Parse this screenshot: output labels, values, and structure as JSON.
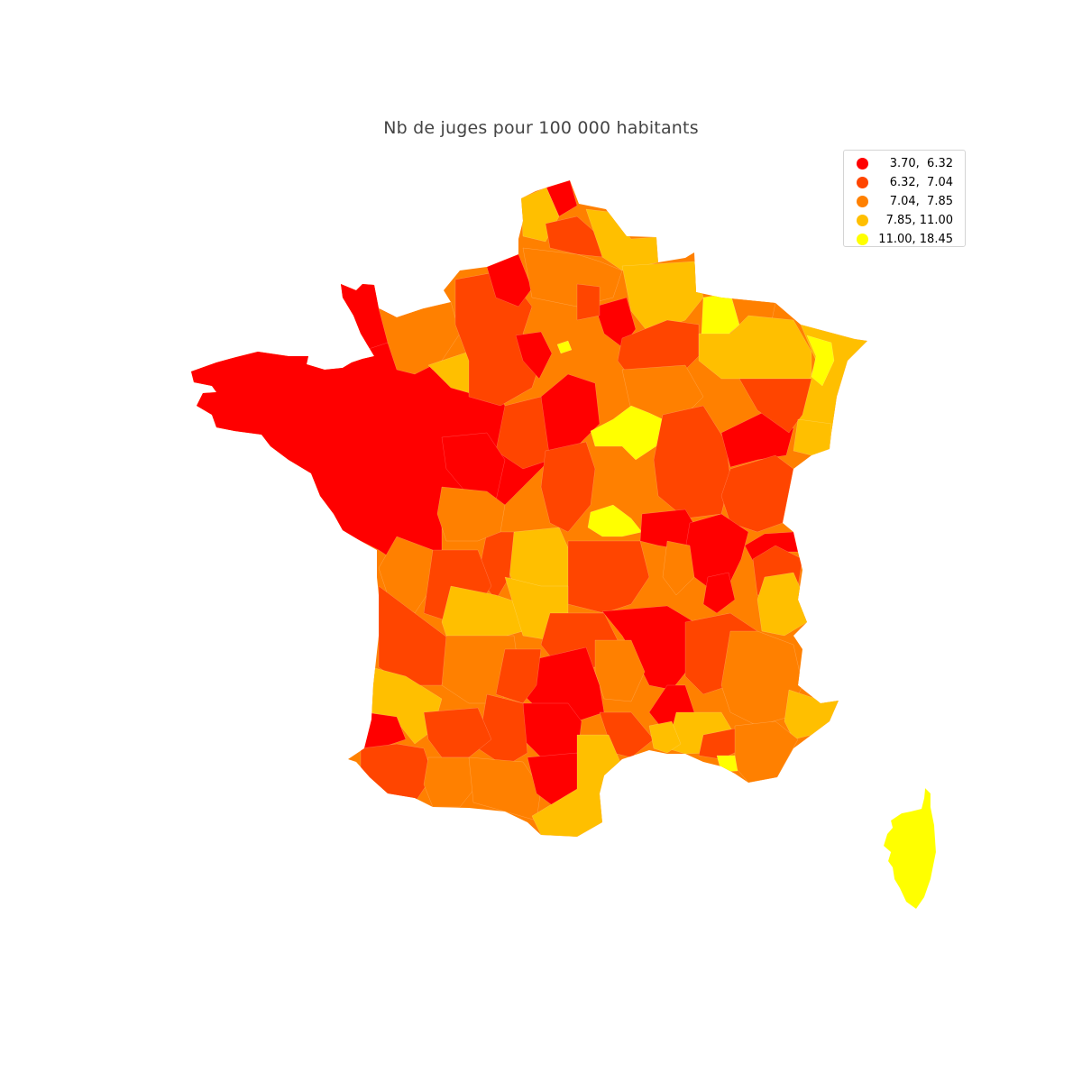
{
  "title": "Nb de juges pour 100 000 habitants",
  "legend": {
    "placement": "top-right",
    "items": [
      {
        "label": "3.70,  6.32",
        "color": "#ff0000"
      },
      {
        "label": "6.32,  7.04",
        "color": "#ff4500"
      },
      {
        "label": "7.04,  7.85",
        "color": "#ff8000"
      },
      {
        "label": "7.85, 11.00",
        "color": "#ffbf00"
      },
      {
        "label": "11.00, 18.45",
        "color": "#ffff00"
      }
    ]
  },
  "map": {
    "region": "France (départements)",
    "classes": {
      "c1": "#ff0000",
      "c2": "#ff4500",
      "c3": "#ff8000",
      "c4": "#ffbf00",
      "c5": "#ffff00"
    }
  }
}
